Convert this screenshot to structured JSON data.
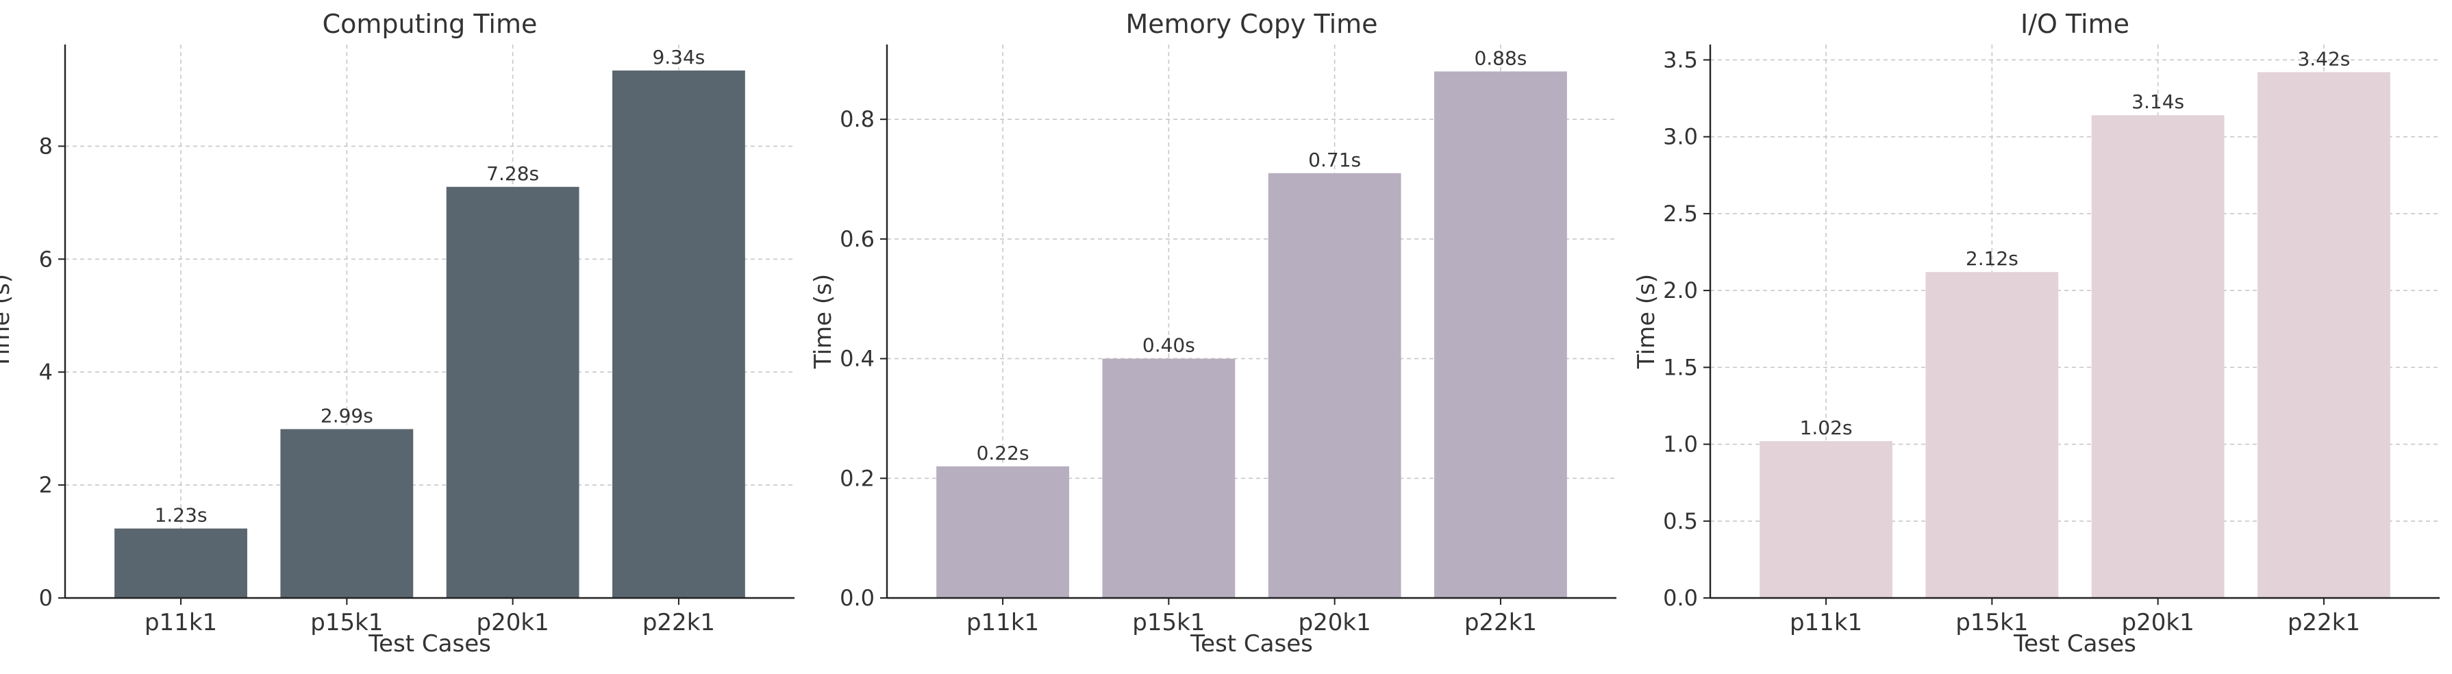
{
  "chart_data": [
    {
      "type": "bar",
      "title": "Computing Time",
      "xlabel": "Test Cases",
      "ylabel": "Time (s)",
      "categories": [
        "p11k1",
        "p15k1",
        "p20k1",
        "p22k1"
      ],
      "values": [
        1.23,
        2.99,
        7.28,
        9.34
      ],
      "value_labels": [
        "1.23s",
        "2.99s",
        "7.28s",
        "9.34s"
      ],
      "ylim": [
        0,
        9.8
      ],
      "yticks": [
        0,
        2,
        4,
        6,
        8
      ],
      "ytick_labels": [
        "0",
        "2",
        "4",
        "6",
        "8"
      ],
      "grid": true,
      "color": "#5a666f"
    },
    {
      "type": "bar",
      "title": "Memory Copy Time",
      "xlabel": "Test Cases",
      "ylabel": "Time (s)",
      "categories": [
        "p11k1",
        "p15k1",
        "p20k1",
        "p22k1"
      ],
      "values": [
        0.22,
        0.4,
        0.71,
        0.88
      ],
      "value_labels": [
        "0.22s",
        "0.40s",
        "0.71s",
        "0.88s"
      ],
      "ylim": [
        0,
        0.925
      ],
      "yticks": [
        0.0,
        0.2,
        0.4,
        0.6,
        0.8
      ],
      "ytick_labels": [
        "0.0",
        "0.2",
        "0.4",
        "0.6",
        "0.8"
      ],
      "grid": true,
      "color": "#b7aebf"
    },
    {
      "type": "bar",
      "title": "I/O Time",
      "xlabel": "Test Cases",
      "ylabel": "Time (s)",
      "categories": [
        "p11k1",
        "p15k1",
        "p20k1",
        "p22k1"
      ],
      "values": [
        1.02,
        2.12,
        3.14,
        3.42
      ],
      "value_labels": [
        "1.02s",
        "2.12s",
        "3.14s",
        "3.42s"
      ],
      "ylim": [
        0,
        3.6
      ],
      "yticks": [
        0.0,
        0.5,
        1.0,
        1.5,
        2.0,
        2.5,
        3.0,
        3.5
      ],
      "ytick_labels": [
        "0.0",
        "0.5",
        "1.0",
        "1.5",
        "2.0",
        "2.5",
        "3.0",
        "3.5"
      ],
      "grid": true,
      "color": "#e3d3d9"
    }
  ]
}
